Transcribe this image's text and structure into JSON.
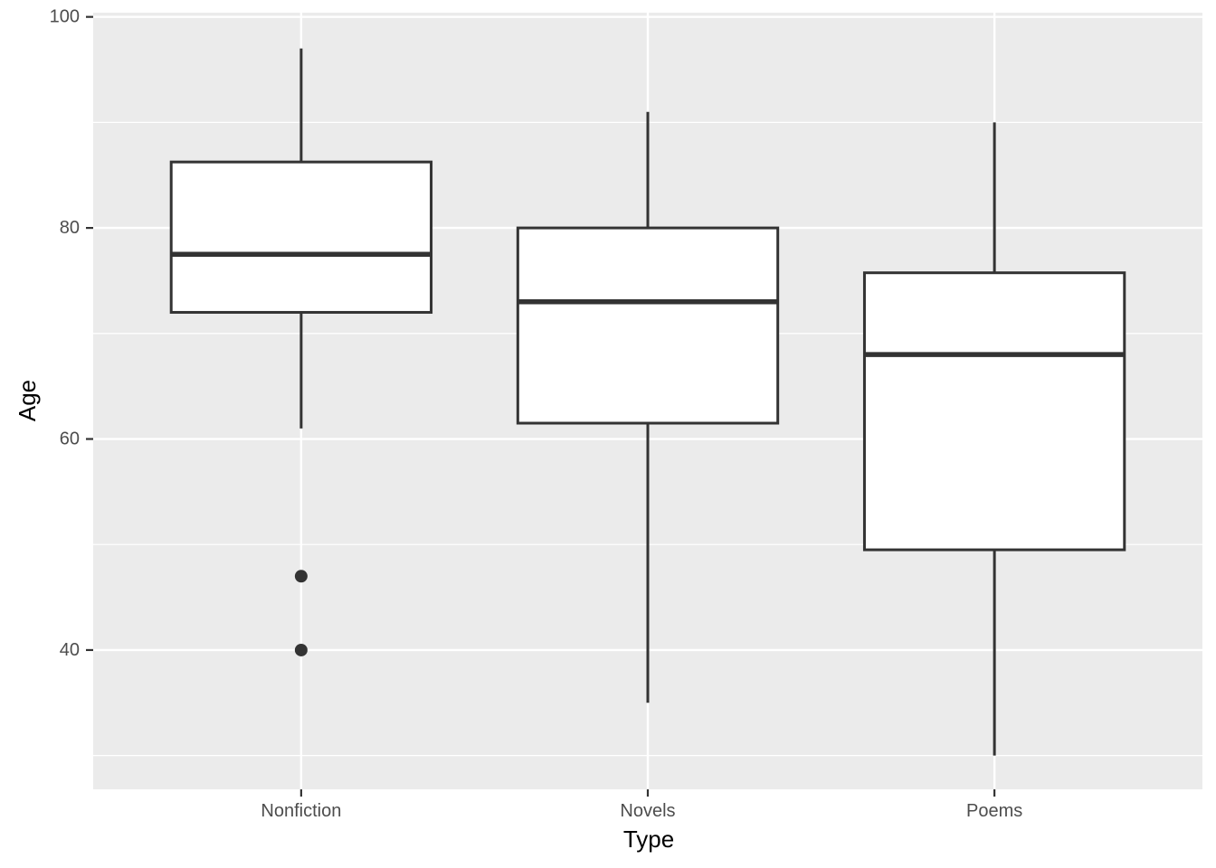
{
  "figure": {
    "background": "#ffffff",
    "panel_background": "#ebebeb",
    "grid_color": "#ffffff",
    "box_stroke_color": "#333333",
    "box_fill_color": "#ffffff",
    "outlier_color": "#333333",
    "tick_mark_color": "#333333",
    "tick_label_color": "#4d4d4d",
    "axis_title_color": "#000000"
  },
  "chart_data": {
    "type": "boxplot",
    "title": "",
    "xlabel": "Type",
    "ylabel": "Age",
    "categories": [
      "Nonfiction",
      "Novels",
      "Poems"
    ],
    "series": [
      {
        "name": "Nonfiction",
        "whisker_low": 61,
        "q1": 72,
        "median": 77.5,
        "q3": 86.25,
        "whisker_high": 97,
        "outliers": [
          47,
          40
        ]
      },
      {
        "name": "Novels",
        "whisker_low": 35,
        "q1": 61.5,
        "median": 73,
        "q3": 80,
        "whisker_high": 91,
        "outliers": []
      },
      {
        "name": "Poems",
        "whisker_low": 30,
        "q1": 49.5,
        "median": 68,
        "q3": 75.75,
        "whisker_high": 90,
        "outliers": []
      }
    ],
    "ylim": [
      26.8,
      100.4
    ],
    "y_major_ticks": [
      40,
      60,
      80,
      100
    ],
    "y_minor_ticks": [
      30,
      50,
      70,
      90
    ],
    "box_width_fraction": 0.75,
    "grid": true,
    "legend": "none"
  }
}
